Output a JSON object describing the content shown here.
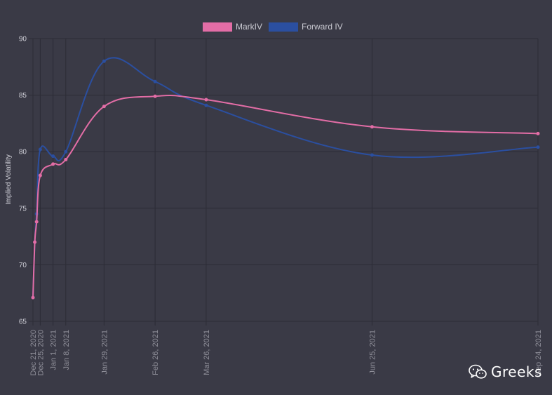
{
  "chart_data": {
    "type": "line",
    "title": "",
    "xlabel": "",
    "ylabel": "Implied Volatility",
    "ylim": [
      65,
      90
    ],
    "yticks": [
      65,
      70,
      75,
      80,
      85,
      90
    ],
    "grid": true,
    "legend_position": "top-center",
    "x_ticks": [
      "Dec 21, 2020",
      "Dec 25, 2020",
      "Jan 1, 2021",
      "Jan 8, 2021",
      "Jan 29, 2021",
      "Feb 26, 2021",
      "Mar 26, 2021",
      "Jun 25, 2021",
      "Sep 24, 2021"
    ],
    "x_start": "Dec 21, 2020",
    "x_end": "Sep 24, 2021",
    "series": [
      {
        "name": "MarkIV",
        "color": "#e36da6",
        "points": [
          {
            "x": "Dec 21, 2020",
            "y": 67.1
          },
          {
            "x": "Dec 22, 2020",
            "y": 72.0
          },
          {
            "x": "Dec 23, 2020",
            "y": 73.8
          },
          {
            "x": "Dec 25, 2020",
            "y": 77.9
          },
          {
            "x": "Jan 1, 2021",
            "y": 78.9
          },
          {
            "x": "Jan 8, 2021",
            "y": 79.3
          },
          {
            "x": "Jan 29, 2021",
            "y": 84.0
          },
          {
            "x": "Feb 26, 2021",
            "y": 84.9
          },
          {
            "x": "Mar 26, 2021",
            "y": 84.6
          },
          {
            "x": "Jun 25, 2021",
            "y": 82.2
          },
          {
            "x": "Sep 24, 2021",
            "y": 81.6
          }
        ]
      },
      {
        "name": "Forward IV",
        "color": "#2b4fa0",
        "points": [
          {
            "x": "Dec 21, 2020",
            "y": 67.1
          },
          {
            "x": "Dec 22, 2020",
            "y": 72.0
          },
          {
            "x": "Dec 23, 2020",
            "y": 74.5
          },
          {
            "x": "Dec 25, 2020",
            "y": 80.2
          },
          {
            "x": "Jan 1, 2021",
            "y": 79.6
          },
          {
            "x": "Jan 8, 2021",
            "y": 80.0
          },
          {
            "x": "Jan 29, 2021",
            "y": 88.0
          },
          {
            "x": "Feb 26, 2021",
            "y": 86.2
          },
          {
            "x": "Mar 26, 2021",
            "y": 84.1
          },
          {
            "x": "Jun 25, 2021",
            "y": 79.7
          },
          {
            "x": "Sep 24, 2021",
            "y": 80.4
          }
        ]
      }
    ]
  },
  "watermark": {
    "text": "Greeks",
    "icon": "wechat-icon"
  }
}
